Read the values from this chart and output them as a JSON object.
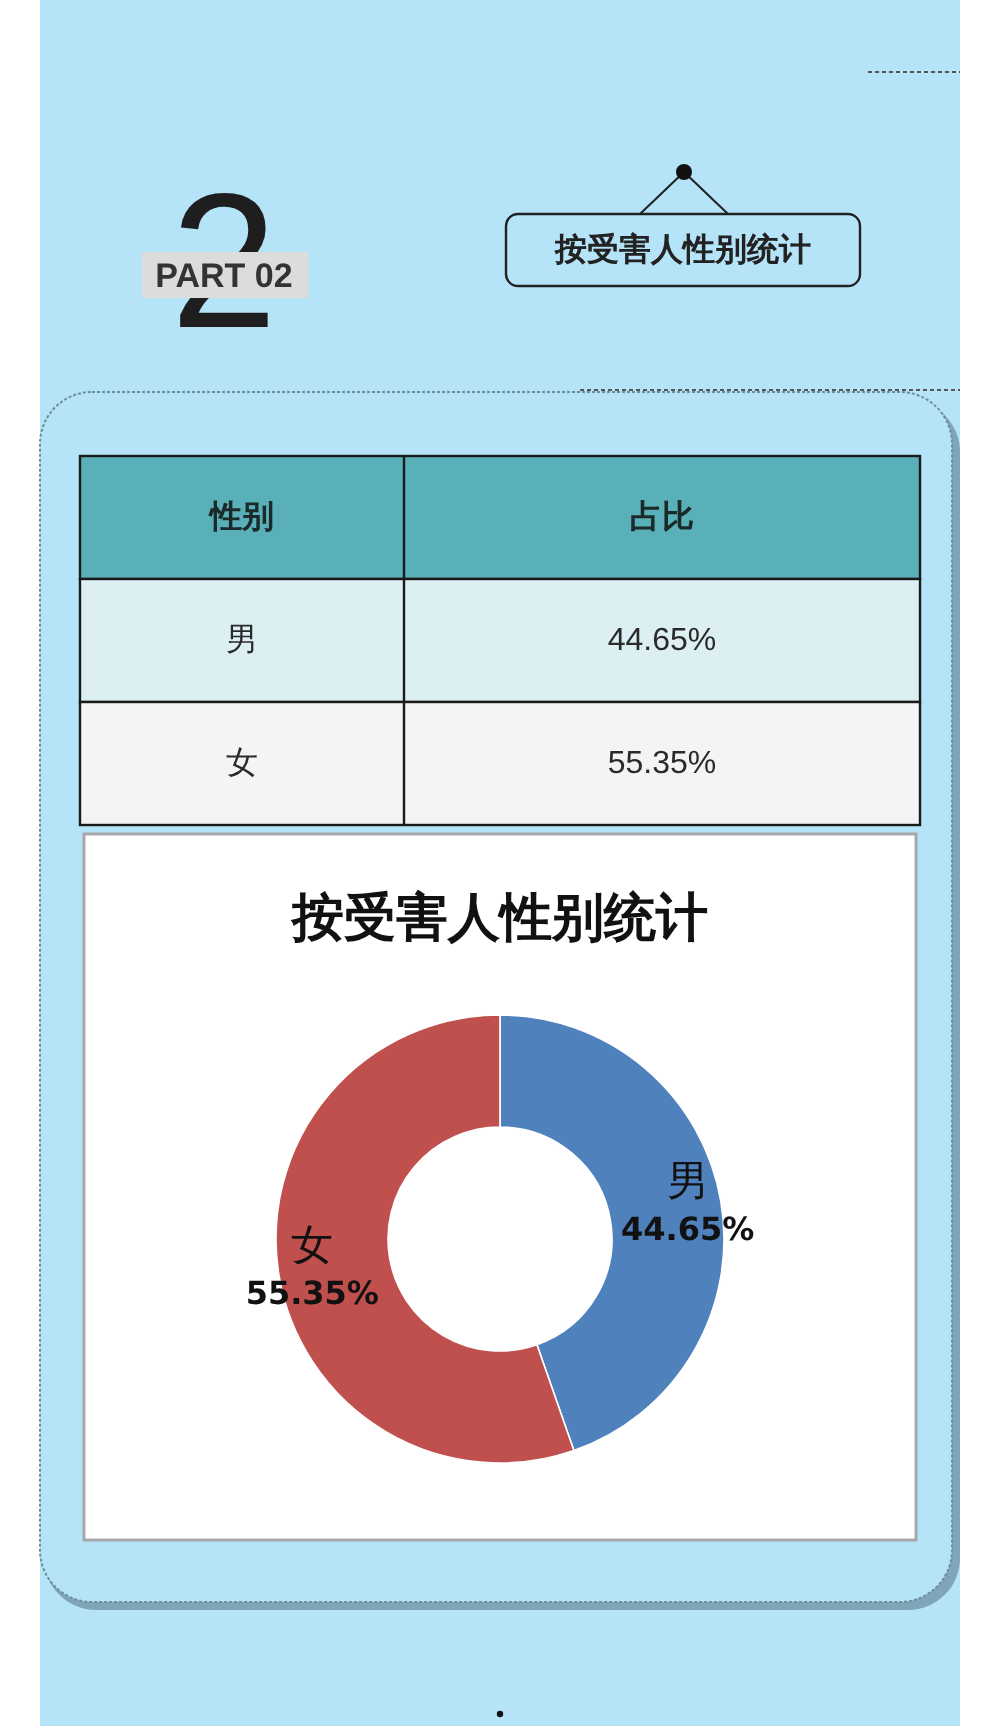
{
  "chart_data": {
    "type": "donut",
    "title": "按受害人性别统计",
    "categories": [
      "男",
      "女"
    ],
    "values": [
      44.65,
      55.35
    ],
    "colors": [
      "#4f81bd",
      "#c0504d"
    ],
    "value_labels": [
      "44.65%",
      "55.35%"
    ],
    "annotations": [
      "2",
      "PART 02",
      "按受害人性别统计",
      "性别",
      "占比"
    ]
  }
}
